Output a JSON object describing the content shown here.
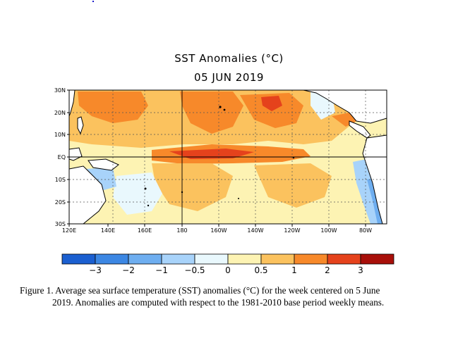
{
  "title": "SST Anomalies (°C)",
  "date": "05 JUN 2019",
  "map": {
    "lat_labels": [
      "30N",
      "20N",
      "10N",
      "EQ",
      "10S",
      "20S",
      "30S"
    ],
    "lon_labels": [
      "120E",
      "140E",
      "160E",
      "180",
      "160W",
      "140W",
      "120W",
      "100W",
      "80W"
    ]
  },
  "colorbar": {
    "tick_labels": [
      "−3",
      "−2",
      "−1",
      "−0.5",
      "0",
      "0.5",
      "1",
      "2",
      "3"
    ],
    "colors": [
      "#1b5fd0",
      "#3c87e3",
      "#6eaef0",
      "#a8d3fa",
      "#e9f8fd",
      "#fdf3b3",
      "#fbc25e",
      "#f7892a",
      "#e5421c",
      "#a80f0a"
    ]
  },
  "caption": {
    "line1": "Figure 1. Average sea surface temperature (SST) anomalies (°C) for the week centered on 5 June",
    "line2": "2019.  Anomalies are computed with respect to the 1981-2010 base period weekly means."
  }
}
